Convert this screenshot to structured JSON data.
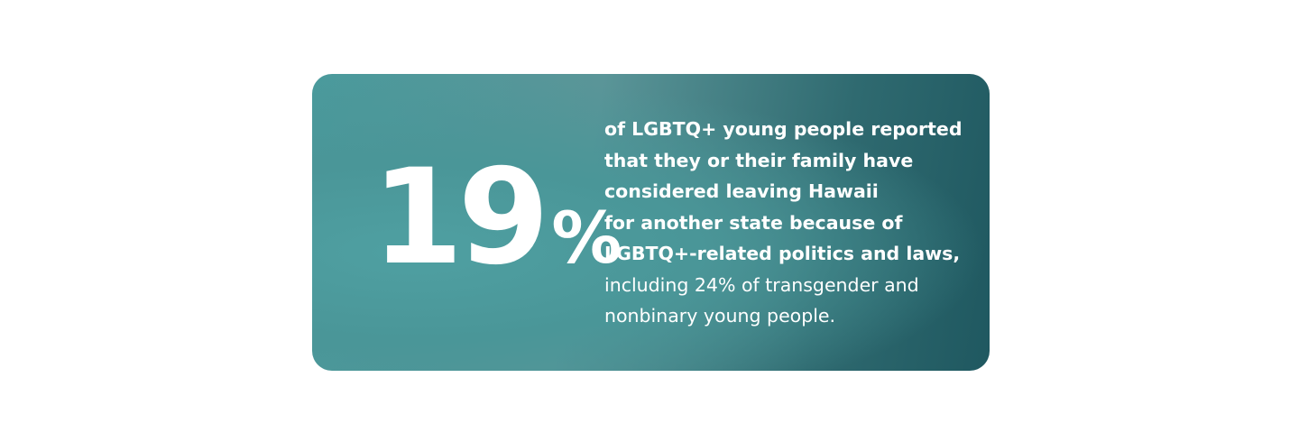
{
  "stat": {
    "number": "19",
    "symbol": "%"
  },
  "description": {
    "bold_lines": [
      "of LGBTQ+ young people reported",
      "that they or their family have",
      "considered leaving Hawaii",
      "for another state because of",
      "LGBTQ+-related politics and laws,"
    ],
    "regular_lines": [
      "including 24% of transgender and",
      "nonbinary young people."
    ]
  }
}
